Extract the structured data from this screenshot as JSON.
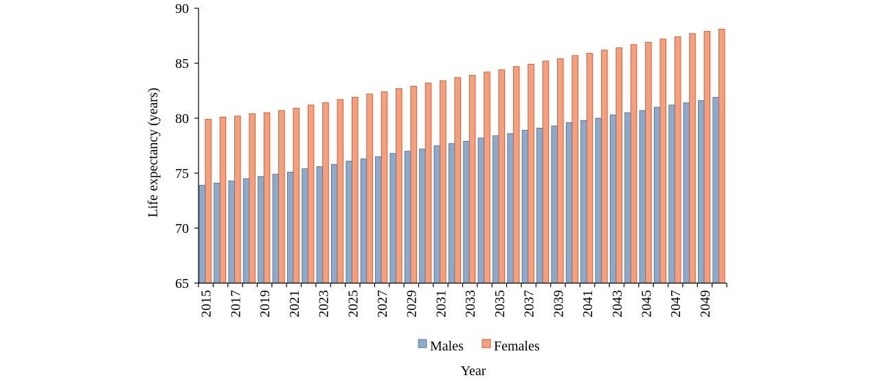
{
  "chart_data": {
    "type": "bar",
    "title": "",
    "xlabel": "Year",
    "ylabel": "Life expectancy (years)",
    "ylim": [
      65,
      90
    ],
    "yticks": [
      65,
      70,
      75,
      80,
      85,
      90
    ],
    "x_tick_labels": [
      "2015",
      "2017",
      "2019",
      "2021",
      "2023",
      "2025",
      "2027",
      "2029",
      "2031",
      "2033",
      "2035",
      "2037",
      "2039",
      "2041",
      "2043",
      "2045",
      "2047",
      "2049"
    ],
    "categories": [
      "2015",
      "2016",
      "2017",
      "2018",
      "2019",
      "2020",
      "2021",
      "2022",
      "2023",
      "2024",
      "2025",
      "2026",
      "2027",
      "2028",
      "2029",
      "2030",
      "2031",
      "2032",
      "2033",
      "2034",
      "2035",
      "2036",
      "2037",
      "2038",
      "2039",
      "2040",
      "2041",
      "2042",
      "2043",
      "2044",
      "2045",
      "2046",
      "2047",
      "2048",
      "2049",
      "2050"
    ],
    "series": [
      {
        "name": "Males",
        "color": "#8eaacb",
        "values": [
          73.9,
          74.1,
          74.3,
          74.5,
          74.7,
          74.9,
          75.1,
          75.4,
          75.6,
          75.8,
          76.1,
          76.3,
          76.5,
          76.8,
          77.0,
          77.2,
          77.5,
          77.7,
          77.9,
          78.2,
          78.4,
          78.6,
          78.9,
          79.1,
          79.3,
          79.6,
          79.8,
          80.0,
          80.3,
          80.5,
          80.7,
          81.0,
          81.2,
          81.4,
          81.6,
          81.9
        ]
      },
      {
        "name": "Females",
        "color": "#f2a07e",
        "values": [
          79.9,
          80.1,
          80.2,
          80.4,
          80.5,
          80.7,
          80.9,
          81.2,
          81.4,
          81.7,
          81.9,
          82.2,
          82.4,
          82.7,
          82.9,
          83.2,
          83.4,
          83.7,
          83.9,
          84.2,
          84.4,
          84.7,
          84.9,
          85.2,
          85.4,
          85.7,
          85.9,
          86.2,
          86.4,
          86.7,
          86.9,
          87.2,
          87.4,
          87.7,
          87.9,
          88.1
        ]
      }
    ],
    "grid": false,
    "legend_position": "bottom"
  }
}
